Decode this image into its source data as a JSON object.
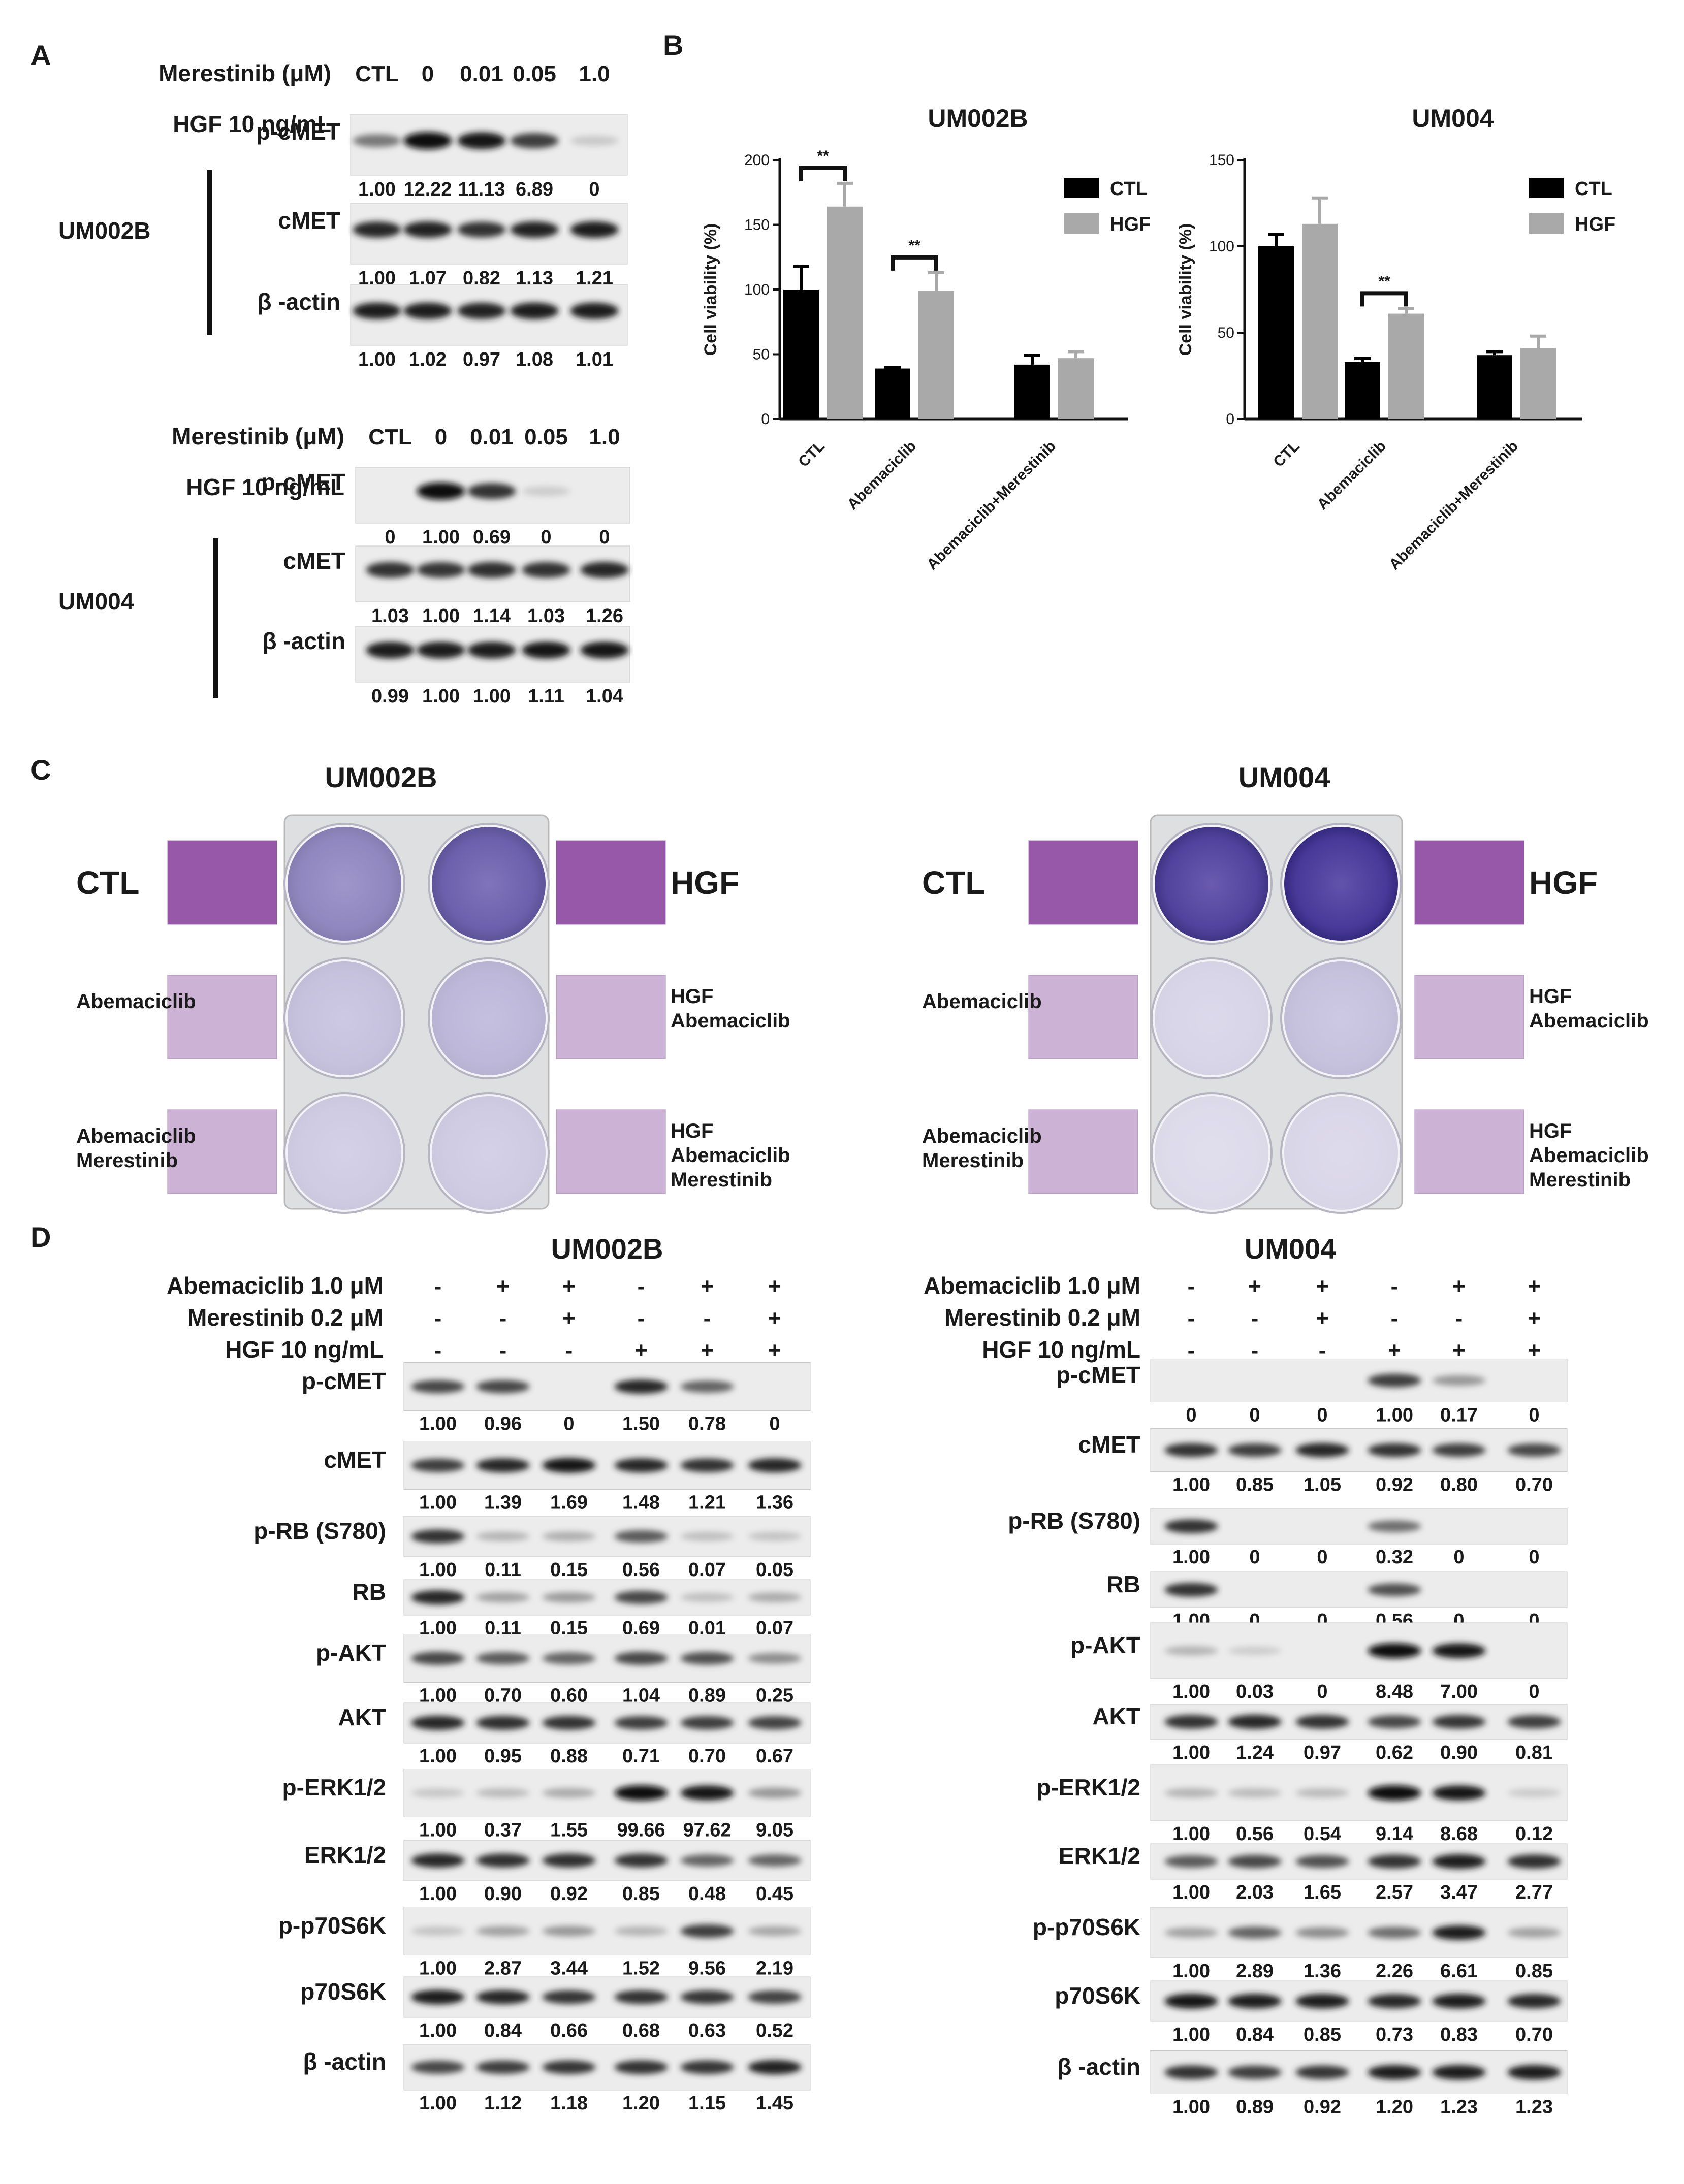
{
  "panels": {
    "A": "A",
    "B": "B",
    "C": "C",
    "D": "D"
  },
  "panel_a": {
    "blocks": [
      {
        "cell_line": "UM002B",
        "drug_label": "Merestinib (μM)",
        "doses": [
          "CTL",
          "0",
          "0.01",
          "0.05",
          "1.0"
        ],
        "hgf_label": "HGF 10 ng/mL",
        "hgf": [
          "-",
          "+",
          "+",
          "+",
          "+"
        ],
        "blots": [
          {
            "name": "p-cMET",
            "values": [
              "1.00",
              "12.22",
              "11.13",
              "6.89",
              "0"
            ],
            "intensities": [
              0.45,
              1.0,
              0.95,
              0.75,
              0.05
            ]
          },
          {
            "name": "cMET",
            "values": [
              "1.00",
              "1.07",
              "0.82",
              "1.13",
              "1.21"
            ],
            "intensities": [
              0.85,
              0.88,
              0.8,
              0.88,
              0.9
            ]
          },
          {
            "name": "β -actin",
            "values": [
              "1.00",
              "1.02",
              "0.97",
              "1.08",
              "1.01"
            ],
            "intensities": [
              0.9,
              0.9,
              0.88,
              0.92,
              0.9
            ]
          }
        ]
      },
      {
        "cell_line": "UM004",
        "drug_label": "Merestinib (μM)",
        "doses": [
          "CTL",
          "0",
          "0.01",
          "0.05",
          "1.0"
        ],
        "hgf_label": "HGF 10 ng/mL",
        "hgf": [
          "-",
          "+",
          "+",
          "+",
          "+"
        ],
        "blots": [
          {
            "name": "p-cMET",
            "values": [
              "0",
              "1.00",
              "0.69",
              "0",
              "0"
            ],
            "intensities": [
              0.0,
              1.0,
              0.8,
              0.03,
              0.0
            ]
          },
          {
            "name": "cMET",
            "values": [
              "1.03",
              "1.00",
              "1.14",
              "1.03",
              "1.26"
            ],
            "intensities": [
              0.8,
              0.78,
              0.82,
              0.8,
              0.85
            ]
          },
          {
            "name": "β -actin",
            "values": [
              "0.99",
              "1.00",
              "1.00",
              "1.11",
              "1.04"
            ],
            "intensities": [
              0.92,
              0.92,
              0.92,
              0.95,
              0.93
            ]
          }
        ]
      }
    ]
  },
  "chart_data": [
    {
      "type": "bar",
      "title": "UM002B",
      "ylabel": "Cell viability (%)",
      "xlabel": "",
      "categories": [
        "CTL",
        "Abemaciclib",
        "Abemaciclib+Merestinib"
      ],
      "series": [
        {
          "name": "CTL",
          "values": [
            100,
            39,
            42
          ],
          "errors": [
            18,
            1,
            7
          ],
          "color": "#000000"
        },
        {
          "name": "HGF",
          "values": [
            164,
            99,
            47
          ],
          "errors": [
            18,
            14,
            5
          ],
          "color": "#a9a9a9"
        }
      ],
      "ylim": [
        0,
        200
      ],
      "yticks": [
        "0",
        "50",
        "100",
        "150",
        "200"
      ],
      "significance": [
        {
          "label": "**",
          "category": 0
        },
        {
          "label": "**",
          "category": 1
        }
      ],
      "legend": "top-right"
    },
    {
      "type": "bar",
      "title": "UM004",
      "ylabel": "Cell viability (%)",
      "xlabel": "",
      "categories": [
        "CTL",
        "Abemaciclib",
        "Abemaciclib+Merestinib"
      ],
      "series": [
        {
          "name": "CTL",
          "values": [
            100,
            33,
            37
          ],
          "errors": [
            7,
            2,
            2
          ],
          "color": "#000000"
        },
        {
          "name": "HGF",
          "values": [
            113,
            61,
            41
          ],
          "errors": [
            15,
            3,
            7
          ],
          "color": "#a9a9a9"
        }
      ],
      "ylim": [
        0,
        150
      ],
      "yticks": [
        "0",
        "50",
        "100",
        "150"
      ],
      "significance": [
        {
          "label": "**",
          "category": 1
        }
      ],
      "legend": "top-right"
    }
  ],
  "panel_c": {
    "groups": [
      {
        "cell_line": "UM002B",
        "left": [
          "CTL",
          "Abemaciclib",
          "Abemaciclib\nMerestinib"
        ],
        "right": [
          "HGF",
          "HGF\nAbemaciclib",
          "HGF\nAbemaciclib\nMerestinib"
        ],
        "stain_density": [
          0.55,
          0.75,
          0.25,
          0.3,
          0.2,
          0.2
        ]
      },
      {
        "cell_line": "UM004",
        "left": [
          "CTL",
          "Abemaciclib",
          "Abemaciclib\nMerestinib"
        ],
        "right": [
          "HGF",
          "HGF\nAbemaciclib",
          "HGF\nAbemaciclib\nMerestinib"
        ],
        "stain_density": [
          0.9,
          0.95,
          0.15,
          0.25,
          0.12,
          0.14
        ]
      }
    ]
  },
  "panel_d": {
    "groups": [
      {
        "cell_line": "UM002B",
        "treatments": [
          {
            "label": "Abemaciclib 1.0 μM",
            "signs": [
              "-",
              "+",
              "+",
              "-",
              "+",
              "+"
            ]
          },
          {
            "label": "Merestinib 0.2 μM",
            "signs": [
              "-",
              "-",
              "+",
              "-",
              "-",
              "+"
            ]
          },
          {
            "label": "HGF 10 ng/mL",
            "signs": [
              "-",
              "-",
              "-",
              "+",
              "+",
              "+"
            ]
          }
        ],
        "blots": [
          {
            "name": "p-cMET",
            "values": [
              "1.00",
              "0.96",
              "0",
              "1.50",
              "0.78",
              "0"
            ],
            "intensities": [
              0.7,
              0.7,
              0.0,
              0.85,
              0.55,
              0.0
            ]
          },
          {
            "name": "cMET",
            "values": [
              "1.00",
              "1.39",
              "1.69",
              "1.48",
              "1.21",
              "1.36"
            ],
            "intensities": [
              0.75,
              0.85,
              0.95,
              0.85,
              0.8,
              0.85
            ]
          },
          {
            "name": "p-RB (S780)",
            "values": [
              "1.00",
              "0.11",
              "0.15",
              "0.56",
              "0.07",
              "0.05"
            ],
            "intensities": [
              0.8,
              0.15,
              0.18,
              0.6,
              0.1,
              0.08
            ]
          },
          {
            "name": "RB",
            "values": [
              "1.00",
              "0.11",
              "0.15",
              "0.69",
              "0.01",
              "0.07"
            ],
            "intensities": [
              0.85,
              0.25,
              0.28,
              0.7,
              0.1,
              0.2
            ]
          },
          {
            "name": "p-AKT",
            "values": [
              "1.00",
              "0.70",
              "0.60",
              "1.04",
              "0.89",
              "0.25"
            ],
            "intensities": [
              0.7,
              0.6,
              0.55,
              0.7,
              0.65,
              0.35
            ]
          },
          {
            "name": "AKT",
            "values": [
              "1.00",
              "0.95",
              "0.88",
              "0.71",
              "0.70",
              "0.67"
            ],
            "intensities": [
              0.85,
              0.82,
              0.8,
              0.75,
              0.75,
              0.72
            ]
          },
          {
            "name": "p-ERK1/2",
            "values": [
              "1.00",
              "0.37",
              "1.55",
              "99.66",
              "97.62",
              "9.05"
            ],
            "intensities": [
              0.06,
              0.12,
              0.2,
              1.0,
              0.95,
              0.3
            ]
          },
          {
            "name": "ERK1/2",
            "values": [
              "1.00",
              "0.90",
              "0.92",
              "0.85",
              "0.48",
              "0.45"
            ],
            "intensities": [
              0.85,
              0.82,
              0.82,
              0.8,
              0.55,
              0.55
            ]
          },
          {
            "name": "p-p70S6K",
            "values": [
              "1.00",
              "2.87",
              "3.44",
              "1.52",
              "9.56",
              "2.19"
            ],
            "intensities": [
              0.08,
              0.25,
              0.3,
              0.15,
              0.75,
              0.22
            ]
          },
          {
            "name": "p70S6K",
            "values": [
              "1.00",
              "0.84",
              "0.66",
              "0.68",
              "0.63",
              "0.52"
            ],
            "intensities": [
              0.9,
              0.85,
              0.78,
              0.8,
              0.78,
              0.72
            ]
          },
          {
            "name": "β -actin",
            "values": [
              "1.00",
              "1.12",
              "1.18",
              "1.20",
              "1.15",
              "1.45"
            ],
            "intensities": [
              0.7,
              0.75,
              0.78,
              0.8,
              0.78,
              0.88
            ]
          }
        ]
      },
      {
        "cell_line": "UM004",
        "treatments": [
          {
            "label": "Abemaciclib 1.0 μM",
            "signs": [
              "-",
              "+",
              "+",
              "-",
              "+",
              "+"
            ]
          },
          {
            "label": "Merestinib 0.2 μM",
            "signs": [
              "-",
              "-",
              "+",
              "-",
              "-",
              "+"
            ]
          },
          {
            "label": "HGF 10 ng/mL",
            "signs": [
              "-",
              "-",
              "-",
              "+",
              "+",
              "+"
            ]
          }
        ],
        "blots": [
          {
            "name": "p-cMET",
            "values": [
              "0",
              "0",
              "0",
              "1.00",
              "0.17",
              "0"
            ],
            "intensities": [
              0.0,
              0.0,
              0.0,
              0.75,
              0.3,
              0.0
            ]
          },
          {
            "name": "cMET",
            "values": [
              "1.00",
              "0.85",
              "1.05",
              "0.92",
              "0.80",
              "0.70"
            ],
            "intensities": [
              0.8,
              0.75,
              0.85,
              0.8,
              0.75,
              0.7
            ]
          },
          {
            "name": "p-RB (S780)",
            "values": [
              "1.00",
              "0",
              "0",
              "0.32",
              "0",
              "0"
            ],
            "intensities": [
              0.8,
              0.0,
              0.0,
              0.5,
              0.0,
              0.0
            ]
          },
          {
            "name": "RB",
            "values": [
              "1.00",
              "0",
              "0",
              "0.56",
              "0",
              "0"
            ],
            "intensities": [
              0.8,
              0.0,
              0.0,
              0.65,
              0.0,
              0.0
            ]
          },
          {
            "name": "p-AKT",
            "values": [
              "1.00",
              "0.03",
              "0",
              "8.48",
              "7.00",
              "0"
            ],
            "intensities": [
              0.15,
              0.03,
              0.0,
              1.0,
              0.95,
              0.0
            ]
          },
          {
            "name": "AKT",
            "values": [
              "1.00",
              "1.24",
              "0.97",
              "0.62",
              "0.90",
              "0.81"
            ],
            "intensities": [
              0.8,
              0.85,
              0.8,
              0.7,
              0.78,
              0.75
            ]
          },
          {
            "name": "p-ERK1/2",
            "values": [
              "1.00",
              "0.56",
              "0.54",
              "9.14",
              "8.68",
              "0.12"
            ],
            "intensities": [
              0.15,
              0.12,
              0.12,
              1.0,
              0.95,
              0.04
            ]
          },
          {
            "name": "ERK1/2",
            "values": [
              "1.00",
              "2.03",
              "1.65",
              "2.57",
              "3.47",
              "2.77"
            ],
            "intensities": [
              0.6,
              0.7,
              0.65,
              0.8,
              0.9,
              0.82
            ]
          },
          {
            "name": "p-p70S6K",
            "values": [
              "1.00",
              "2.89",
              "1.36",
              "2.26",
              "6.61",
              "0.85"
            ],
            "intensities": [
              0.25,
              0.55,
              0.35,
              0.5,
              0.9,
              0.25
            ]
          },
          {
            "name": "p70S6K",
            "values": [
              "1.00",
              "0.84",
              "0.85",
              "0.73",
              "0.83",
              "0.70"
            ],
            "intensities": [
              0.95,
              0.9,
              0.9,
              0.85,
              0.9,
              0.85
            ]
          },
          {
            "name": "β -actin",
            "values": [
              "1.00",
              "0.89",
              "0.92",
              "1.20",
              "1.23",
              "1.23"
            ],
            "intensities": [
              0.8,
              0.75,
              0.78,
              0.9,
              0.92,
              0.92
            ]
          }
        ]
      }
    ]
  }
}
